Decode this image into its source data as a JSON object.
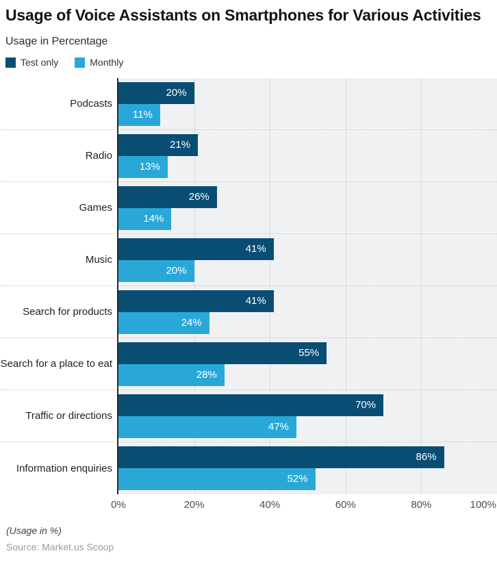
{
  "header": {
    "title": "Usage of Voice Assistants on Smartphones for Various Activities",
    "subtitle": "Usage in Percentage"
  },
  "legend": [
    {
      "label": "Test only",
      "color": "#0a4d73"
    },
    {
      "label": "Monthly",
      "color": "#29a8d8"
    }
  ],
  "chart_data": {
    "type": "bar",
    "orientation": "horizontal",
    "title": "Usage of Voice Assistants on Smartphones for Various Activities",
    "subtitle": "Usage in Percentage",
    "categories": [
      "Podcasts",
      "Radio",
      "Games",
      "Music",
      "Search for products",
      "Search for a place to eat",
      "Traffic or directions",
      "Information enquiries"
    ],
    "series": [
      {
        "name": "Test only",
        "color": "#0a4d73",
        "values": [
          20,
          21,
          26,
          41,
          41,
          55,
          70,
          86
        ]
      },
      {
        "name": "Monthly",
        "color": "#29a8d8",
        "values": [
          11,
          13,
          14,
          20,
          24,
          28,
          47,
          52
        ]
      }
    ],
    "value_suffix": "%",
    "xlim": [
      0,
      100
    ],
    "x_ticks": [
      "0%",
      "20%",
      "40%",
      "60%",
      "80%",
      "100%"
    ],
    "grid": true,
    "legend_position": "top",
    "plot_background": "#f0f1f2",
    "gridline_color": "#d9dadb"
  },
  "footer": {
    "note": "(Usage in %)",
    "source": "Source: Market.us Scoop"
  }
}
